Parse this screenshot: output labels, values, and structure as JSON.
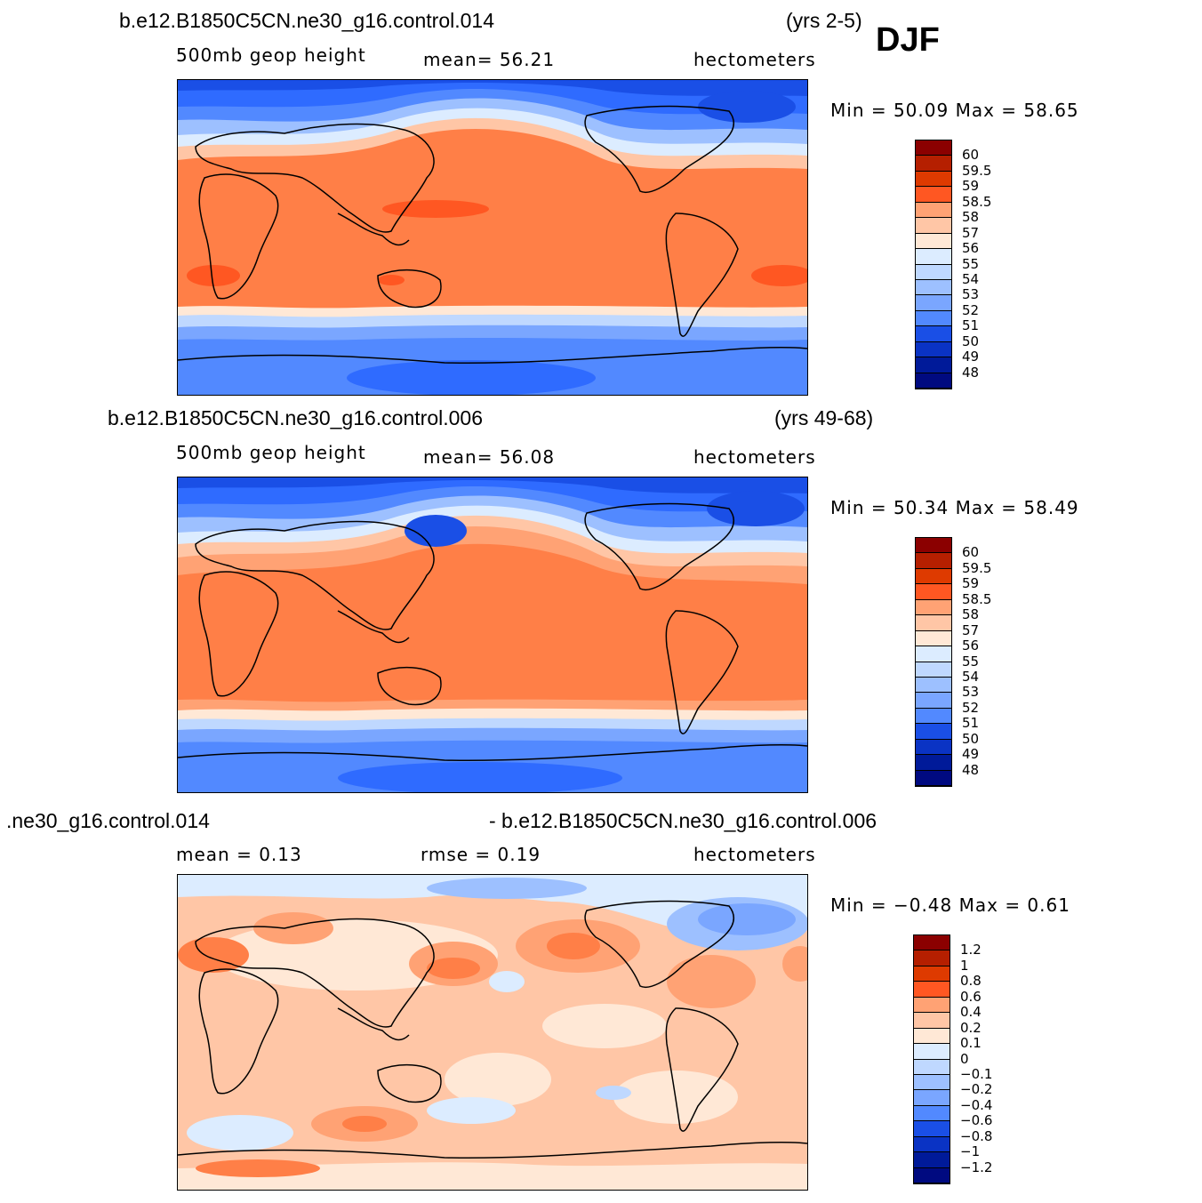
{
  "season": "DJF",
  "panels": [
    {
      "case_left": "b.e12.B1850C5CN.ne30_g16.control.014",
      "case_right": "(yrs 2-5)",
      "variable": "500mb  geop  height",
      "stat": "mean=   56.21",
      "units": "hectometers",
      "minmax": "Min =   50.09  Max =   58.65",
      "colors": [
        "#8b0000",
        "#b51f00",
        "#de3a00",
        "#ff5722",
        "#ff7f47",
        "#ffa274",
        "#ffc6a6",
        "#ffe8d6",
        "#dcecff",
        "#bfd8ff",
        "#9dc0ff",
        "#7aa6ff",
        "#5289ff",
        "#2f6bff",
        "#1a4fe6",
        "#0a33c4",
        "#001a99",
        "#000a80"
      ],
      "labels": [
        "60",
        "59.5",
        "59",
        "58.5",
        "58",
        "57",
        "56",
        "55",
        "54",
        "53",
        "52",
        "51",
        "50",
        "49",
        "48"
      ]
    },
    {
      "case_left": "b.e12.B1850C5CN.ne30_g16.control.006",
      "case_right": "(yrs 49-68)",
      "variable": "500mb  geop  height",
      "stat": "mean=   56.08",
      "units": "hectometers",
      "minmax": "Min =   50.34  Max =   58.49",
      "colors": [
        "#8b0000",
        "#b51f00",
        "#de3a00",
        "#ff5722",
        "#ff7f47",
        "#ffa274",
        "#ffc6a6",
        "#ffe8d6",
        "#dcecff",
        "#bfd8ff",
        "#9dc0ff",
        "#7aa6ff",
        "#5289ff",
        "#2f6bff",
        "#1a4fe6",
        "#0a33c4",
        "#001a99",
        "#000a80"
      ],
      "labels": [
        "60",
        "59.5",
        "59",
        "58.5",
        "58",
        "57",
        "56",
        "55",
        "54",
        "53",
        "52",
        "51",
        "50",
        "49",
        "48"
      ]
    },
    {
      "case_left": ".ne30_g16.control.014",
      "case_right": "- b.e12.B1850C5CN.ne30_g16.control.006",
      "variable": "mean  =     0.13",
      "stat": "rmse  =     0.19",
      "units": "hectometers",
      "minmax": "Min =   −0.48  Max =     0.61",
      "colors": [
        "#8b0000",
        "#b51f00",
        "#de3a00",
        "#ff5722",
        "#ff7f47",
        "#ffa274",
        "#ffc6a6",
        "#ffe8d6",
        "#dcecff",
        "#bfd8ff",
        "#9dc0ff",
        "#7aa6ff",
        "#5289ff",
        "#2f6bff",
        "#1a4fe6",
        "#0a33c4",
        "#001a99",
        "#000a80"
      ],
      "labels": [
        "1.2",
        "1",
        "0.8",
        "0.6",
        "0.4",
        "0.2",
        "0.1",
        "0",
        "−0.1",
        "−0.2",
        "−0.4",
        "−0.6",
        "−0.8",
        "−1",
        "−1.2"
      ]
    }
  ]
}
